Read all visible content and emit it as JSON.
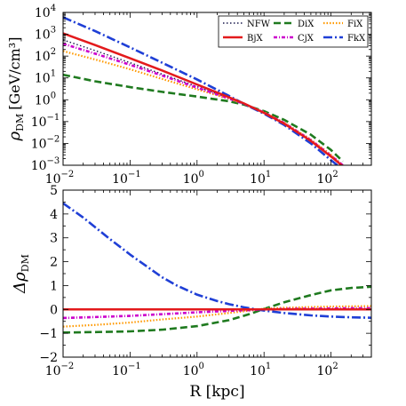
{
  "chart_data": [
    {
      "type": "line",
      "panel": "top",
      "xlabel": "",
      "ylabel_main": "ρ",
      "ylabel_sub": "DM",
      "ylabel_unit": "[GeV/cm³]",
      "x_scale": "log",
      "y_scale": "log",
      "xlim": [
        0.01,
        400
      ],
      "ylim": [
        0.001,
        10000
      ],
      "grid": false,
      "legend_position": "top-right",
      "x_ticks": [
        {
          "base": "10",
          "exp": "−2",
          "value": 0.01
        },
        {
          "base": "10",
          "exp": "−1",
          "value": 0.1
        },
        {
          "base": "10",
          "exp": "0",
          "value": 1
        },
        {
          "base": "10",
          "exp": "1",
          "value": 10
        },
        {
          "base": "10",
          "exp": "2",
          "value": 100
        }
      ],
      "y_ticks": [
        {
          "base": "10",
          "exp": "−3",
          "value": 0.001
        },
        {
          "base": "10",
          "exp": "−2",
          "value": 0.01
        },
        {
          "base": "10",
          "exp": "−1",
          "value": 0.1
        },
        {
          "base": "10",
          "exp": "0",
          "value": 1
        },
        {
          "base": "10",
          "exp": "1",
          "value": 10
        },
        {
          "base": "10",
          "exp": "2",
          "value": 100
        },
        {
          "base": "10",
          "exp": "3",
          "value": 1000
        },
        {
          "base": "10",
          "exp": "4",
          "value": 10000
        }
      ],
      "series": [
        {
          "name": "NFW",
          "color": "#1a1a4e",
          "dash": "dot",
          "x": [
            0.01,
            0.03,
            0.1,
            0.3,
            1,
            3,
            5,
            10,
            20,
            50,
            100,
            150
          ],
          "y": [
            550,
            180,
            50,
            15,
            4,
            1.2,
            0.65,
            0.25,
            0.08,
            0.013,
            0.0025,
            0.0009
          ]
        },
        {
          "name": "DiX",
          "color": "#1f7a1f",
          "dash": "dash",
          "x": [
            0.01,
            0.03,
            0.1,
            0.3,
            1,
            3,
            5,
            10,
            20,
            50,
            100,
            150
          ],
          "y": [
            14,
            7,
            3.8,
            2.3,
            1.4,
            0.85,
            0.6,
            0.3,
            0.12,
            0.025,
            0.005,
            0.0015
          ]
        },
        {
          "name": "FiX",
          "color": "#ff9900",
          "dash": "dot-orange",
          "x": [
            0.01,
            0.03,
            0.1,
            0.3,
            1,
            3,
            5,
            10,
            20,
            50,
            100,
            150
          ],
          "y": [
            170,
            70,
            25,
            9,
            3,
            1.1,
            0.65,
            0.27,
            0.09,
            0.015,
            0.003,
            0.001
          ]
        },
        {
          "name": "BjX",
          "color": "#e31a1c",
          "dash": "solid",
          "x": [
            0.01,
            0.03,
            0.1,
            0.3,
            1,
            3,
            5,
            10,
            20,
            50,
            100,
            150
          ],
          "y": [
            1100,
            320,
            80,
            22,
            5,
            1.3,
            0.68,
            0.25,
            0.08,
            0.013,
            0.0025,
            0.0009
          ]
        },
        {
          "name": "CjX",
          "color": "#cc00cc",
          "dash": "dashdot-small",
          "x": [
            0.01,
            0.03,
            0.1,
            0.3,
            1,
            3,
            5,
            10,
            20,
            50,
            100,
            150
          ],
          "y": [
            370,
            130,
            40,
            13,
            3.6,
            1.15,
            0.65,
            0.26,
            0.085,
            0.014,
            0.0027,
            0.001
          ]
        },
        {
          "name": "FkX",
          "color": "#1f3fd6",
          "dash": "dashdot",
          "x": [
            0.01,
            0.03,
            0.1,
            0.3,
            1,
            3,
            5,
            10,
            20,
            50,
            100,
            130
          ],
          "y": [
            6000,
            1400,
            250,
            50,
            8.5,
            1.5,
            0.65,
            0.23,
            0.07,
            0.01,
            0.0017,
            0.0009
          ]
        }
      ]
    },
    {
      "type": "line",
      "panel": "bottom",
      "xlabel": "R [kpc]",
      "ylabel_main": "Δρ",
      "ylabel_sub": "DM",
      "x_scale": "log",
      "y_scale": "linear",
      "xlim": [
        0.01,
        400
      ],
      "ylim": [
        -2,
        5
      ],
      "grid": false,
      "reference_line": 0,
      "x_ticks": [
        {
          "base": "10",
          "exp": "−2",
          "value": 0.01
        },
        {
          "base": "10",
          "exp": "−1",
          "value": 0.1
        },
        {
          "base": "10",
          "exp": "0",
          "value": 1
        },
        {
          "base": "10",
          "exp": "1",
          "value": 10
        },
        {
          "base": "10",
          "exp": "2",
          "value": 100
        }
      ],
      "y_ticks": [
        {
          "label": "−2",
          "value": -2
        },
        {
          "label": "−1",
          "value": -1
        },
        {
          "label": "0",
          "value": 0
        },
        {
          "label": "1",
          "value": 1
        },
        {
          "label": "2",
          "value": 2
        },
        {
          "label": "3",
          "value": 3
        },
        {
          "label": "4",
          "value": 4
        },
        {
          "label": "5",
          "value": 5
        }
      ],
      "series": [
        {
          "name": "NFW",
          "color": "#1a1a4e",
          "dash": "dot",
          "x": [
            0.01,
            0.1,
            1,
            10,
            100,
            400
          ],
          "y": [
            -0.02,
            -0.01,
            0,
            0,
            0.02,
            0.03
          ]
        },
        {
          "name": "DiX",
          "color": "#1f7a1f",
          "dash": "dash",
          "x": [
            0.01,
            0.03,
            0.1,
            0.3,
            1,
            3,
            6,
            10,
            20,
            50,
            100,
            200,
            400
          ],
          "y": [
            -0.97,
            -0.95,
            -0.92,
            -0.85,
            -0.7,
            -0.45,
            -0.2,
            0.02,
            0.3,
            0.6,
            0.8,
            0.9,
            0.95
          ]
        },
        {
          "name": "FiX",
          "color": "#ff9900",
          "dash": "dot-orange",
          "x": [
            0.01,
            0.03,
            0.1,
            0.3,
            1,
            3,
            6,
            10,
            20,
            50,
            100,
            200,
            400
          ],
          "y": [
            -0.72,
            -0.65,
            -0.55,
            -0.42,
            -0.3,
            -0.15,
            -0.05,
            0.03,
            0.07,
            0.1,
            0.12,
            0.13,
            0.14
          ]
        },
        {
          "name": "BjX",
          "color": "#e31a1c",
          "dash": "solid",
          "x": [
            0.01,
            0.1,
            1,
            10,
            100,
            400
          ],
          "y": [
            0,
            0,
            0,
            0,
            0,
            0
          ]
        },
        {
          "name": "CjX",
          "color": "#cc00cc",
          "dash": "dashdot-small",
          "x": [
            0.01,
            0.03,
            0.1,
            0.3,
            1,
            3,
            6,
            10,
            20,
            50,
            100,
            200,
            400
          ],
          "y": [
            -0.36,
            -0.32,
            -0.27,
            -0.2,
            -0.12,
            -0.06,
            -0.03,
            0.0,
            0.02,
            0.03,
            0.04,
            0.05,
            0.05
          ]
        },
        {
          "name": "FkX",
          "color": "#1f3fd6",
          "dash": "dashdot",
          "x": [
            0.01,
            0.02,
            0.03,
            0.05,
            0.1,
            0.2,
            0.3,
            0.5,
            1,
            2,
            3,
            5,
            7,
            10,
            20,
            50,
            100,
            200,
            400
          ],
          "y": [
            4.45,
            3.85,
            3.45,
            2.95,
            2.3,
            1.7,
            1.35,
            1.0,
            0.62,
            0.35,
            0.22,
            0.09,
            0.02,
            -0.05,
            -0.15,
            -0.25,
            -0.3,
            -0.33,
            -0.35
          ]
        }
      ]
    }
  ],
  "legend": {
    "rows": [
      [
        {
          "name": "NFW",
          "color": "#1a1a4e",
          "dash": "dot"
        },
        {
          "name": "DiX",
          "color": "#1f7a1f",
          "dash": "dash"
        },
        {
          "name": "FiX",
          "color": "#ff9900",
          "dash": "dot-orange"
        }
      ],
      [
        {
          "name": "BjX",
          "color": "#e31a1c",
          "dash": "solid"
        },
        {
          "name": "CjX",
          "color": "#cc00cc",
          "dash": "dashdot-small"
        },
        {
          "name": "FkX",
          "color": "#1f3fd6",
          "dash": "dashdot"
        }
      ]
    ]
  },
  "colors": {
    "reference_line": "#999999",
    "axes": "#000000"
  }
}
